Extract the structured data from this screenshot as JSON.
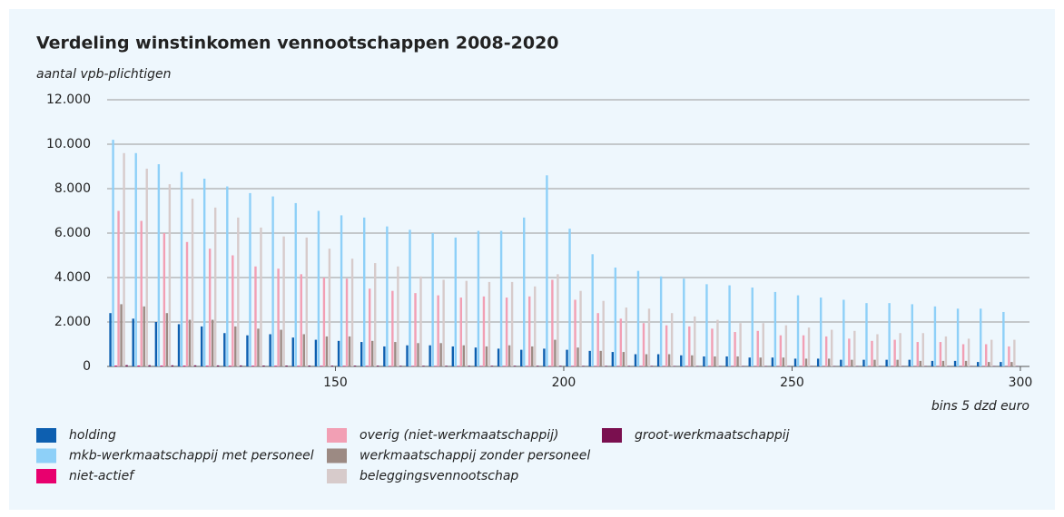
{
  "chart_data": {
    "type": "bar",
    "title": "Verdeling winstinkomen vennootschappen 2008-2020",
    "y_label": "aantal vpb-plichtigen",
    "x_label": "bins 5 dzd euro",
    "x": [
      102.5,
      107.5,
      112.5,
      117.5,
      122.5,
      127.5,
      132.5,
      137.5,
      142.5,
      147.5,
      152.5,
      157.5,
      162.5,
      167.5,
      172.5,
      177.5,
      182.5,
      187.5,
      192.5,
      197.5,
      202.5,
      207.5,
      212.5,
      217.5,
      222.5,
      227.5,
      232.5,
      237.5,
      242.5,
      247.5,
      252.5,
      257.5,
      262.5,
      267.5,
      272.5,
      277.5,
      282.5,
      287.5,
      292.5,
      297.5
    ],
    "xlim": [
      100,
      302
    ],
    "xticks": [
      150,
      200,
      250,
      300
    ],
    "ylim": [
      0,
      12000
    ],
    "yticks": [
      0,
      {
        "value": 2000,
        "label": "2.000"
      },
      {
        "value": 4000,
        "label": "4.000"
      },
      {
        "value": 6000,
        "label": "6.000"
      },
      {
        "value": 8000,
        "label": "8.000"
      },
      {
        "value": 10000,
        "label": "10.000"
      },
      {
        "value": 12000,
        "label": "12.000"
      }
    ],
    "grid": true,
    "legend": "bottom",
    "series": [
      {
        "name": "holding",
        "color": "#0d5fb0",
        "values": [
          2400,
          2150,
          2000,
          1900,
          1800,
          1500,
          1400,
          1450,
          1300,
          1200,
          1150,
          1100,
          900,
          950,
          950,
          900,
          850,
          800,
          750,
          800,
          750,
          700,
          650,
          550,
          550,
          500,
          450,
          450,
          400,
          400,
          350,
          350,
          300,
          300,
          300,
          300,
          250,
          250,
          200,
          200
        ]
      },
      {
        "name": "mkb-werkmaatschappij met personeel",
        "color": "#8ed0f8",
        "values": [
          10200,
          9600,
          9100,
          8750,
          8450,
          8100,
          7800,
          7650,
          7350,
          7000,
          6800,
          6700,
          6300,
          6150,
          6000,
          5800,
          6100,
          6100,
          6700,
          8600,
          6200,
          5050,
          4450,
          4300,
          4050,
          3950,
          3700,
          3650,
          3550,
          3350,
          3200,
          3100,
          3000,
          2850,
          2850,
          2800,
          2700,
          2600,
          2600,
          2450
        ]
      },
      {
        "name": "niet-actief",
        "color": "#e8006e",
        "values": [
          40,
          40,
          35,
          35,
          30,
          30,
          30,
          30,
          25,
          25,
          25,
          25,
          20,
          20,
          20,
          20,
          20,
          20,
          20,
          20,
          20,
          15,
          15,
          15,
          15,
          15,
          15,
          15,
          10,
          10,
          10,
          10,
          10,
          10,
          10,
          10,
          10,
          10,
          10,
          10
        ]
      },
      {
        "name": "overig (niet-werkmaatschappij)",
        "color": "#f29fb4",
        "values": [
          7000,
          6550,
          6000,
          5600,
          5300,
          5000,
          4500,
          4400,
          4150,
          4000,
          3950,
          3500,
          3400,
          3300,
          3200,
          3100,
          3150,
          3100,
          3150,
          3900,
          3000,
          2400,
          2150,
          1950,
          1850,
          1800,
          1700,
          1550,
          1600,
          1400,
          1400,
          1350,
          1250,
          1150,
          1200,
          1100,
          1100,
          1000,
          1000,
          900
        ]
      },
      {
        "name": "werkmaatschappij zonder personeel",
        "color": "#9c8a83",
        "values": [
          2800,
          2700,
          2400,
          2100,
          2100,
          1800,
          1700,
          1650,
          1450,
          1350,
          1350,
          1150,
          1100,
          1050,
          1050,
          950,
          900,
          950,
          900,
          1200,
          850,
          700,
          650,
          550,
          550,
          500,
          450,
          450,
          400,
          400,
          350,
          350,
          300,
          300,
          300,
          250,
          250,
          250,
          200,
          200
        ]
      },
      {
        "name": "beleggingsvennootschap",
        "color": "#d7cbcb",
        "values": [
          9600,
          8900,
          8200,
          7550,
          7150,
          6700,
          6250,
          5850,
          5800,
          5300,
          4850,
          4650,
          4500,
          4050,
          3900,
          3850,
          3800,
          3800,
          3600,
          4150,
          3400,
          2950,
          2650,
          2600,
          2400,
          2250,
          2100,
          1950,
          1950,
          1850,
          1750,
          1650,
          1600,
          1450,
          1500,
          1500,
          1350,
          1250,
          1200,
          1200
        ]
      },
      {
        "name": "groot-werkmaatschappij",
        "color": "#7a0f4f",
        "values": [
          60,
          55,
          50,
          50,
          45,
          45,
          40,
          40,
          40,
          35,
          35,
          35,
          30,
          30,
          30,
          30,
          30,
          30,
          30,
          30,
          25,
          25,
          25,
          25,
          20,
          20,
          20,
          20,
          20,
          20,
          15,
          15,
          15,
          15,
          15,
          15,
          15,
          15,
          15,
          15
        ]
      }
    ]
  }
}
